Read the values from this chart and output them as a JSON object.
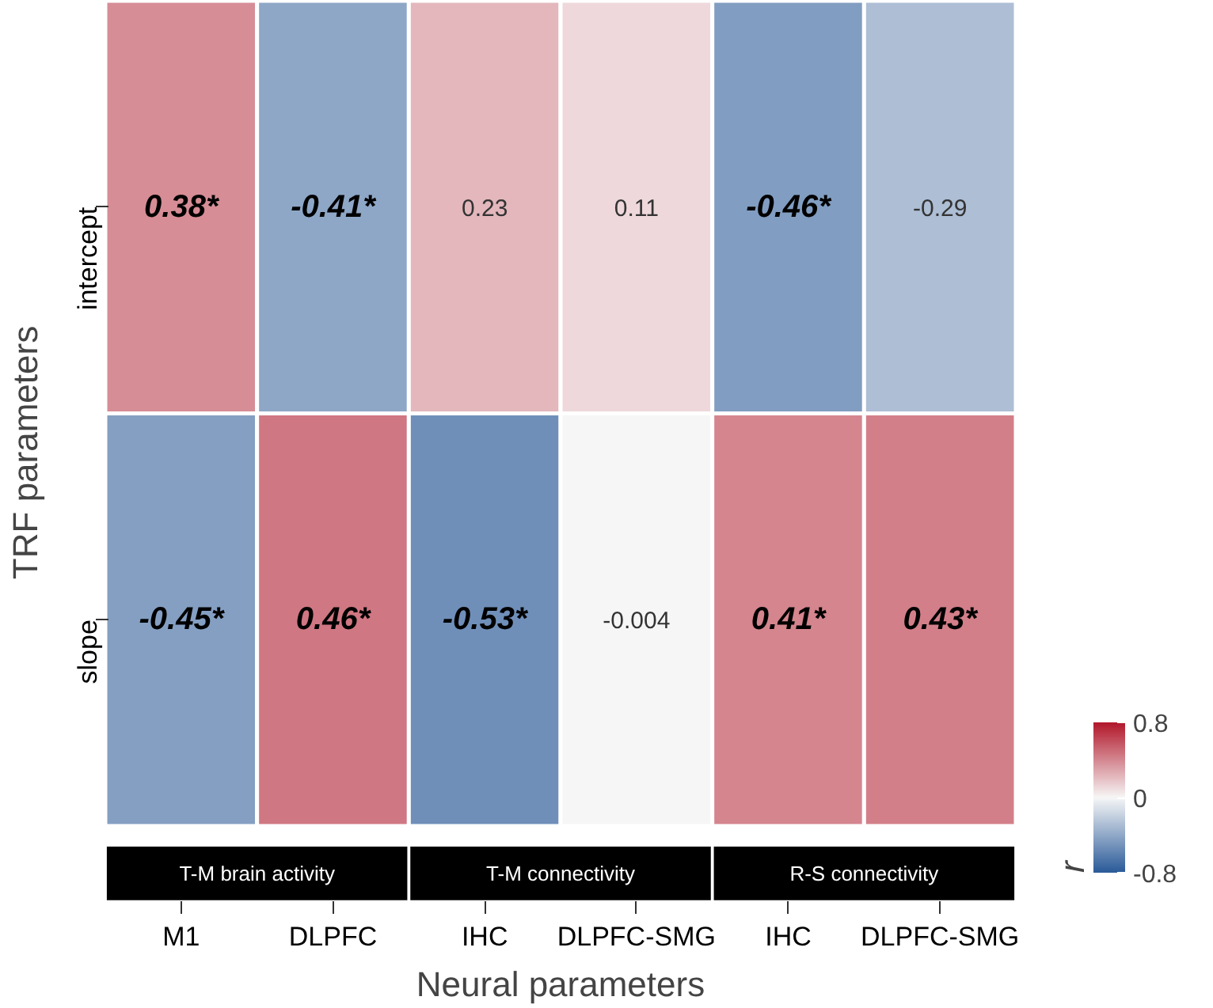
{
  "chart_data": {
    "type": "heatmap",
    "xlabel": "Neural parameters",
    "ylabel": "TRF parameters",
    "clabel": "r",
    "categories": [
      "M1",
      "DLPFC",
      "IHC",
      "DLPFC-SMG",
      "IHC",
      "DLPFC-SMG"
    ],
    "y_categories": [
      "intercept",
      "slope"
    ],
    "cells": [
      [
        0.38,
        -0.41,
        0.23,
        0.11,
        -0.46,
        -0.29
      ],
      [
        -0.45,
        0.46,
        -0.53,
        -0.004,
        0.41,
        0.43
      ]
    ],
    "cell_labels": [
      [
        "0.38*",
        "-0.41*",
        "0.23",
        "0.11",
        "-0.46*",
        "-0.29"
      ],
      [
        "-0.45*",
        "0.46*",
        "-0.53*",
        "-0.004",
        "0.41*",
        "0.43*"
      ]
    ],
    "clim": [
      -0.8,
      0.8
    ],
    "cticks": [
      -0.8,
      0,
      0.8
    ],
    "colors": [
      "#2a5a99",
      "#f7f7f7",
      "#b2182b"
    ],
    "annotations": [
      "T-M brain activity",
      "T-M connectivity",
      "R-S connectivity"
    ]
  }
}
